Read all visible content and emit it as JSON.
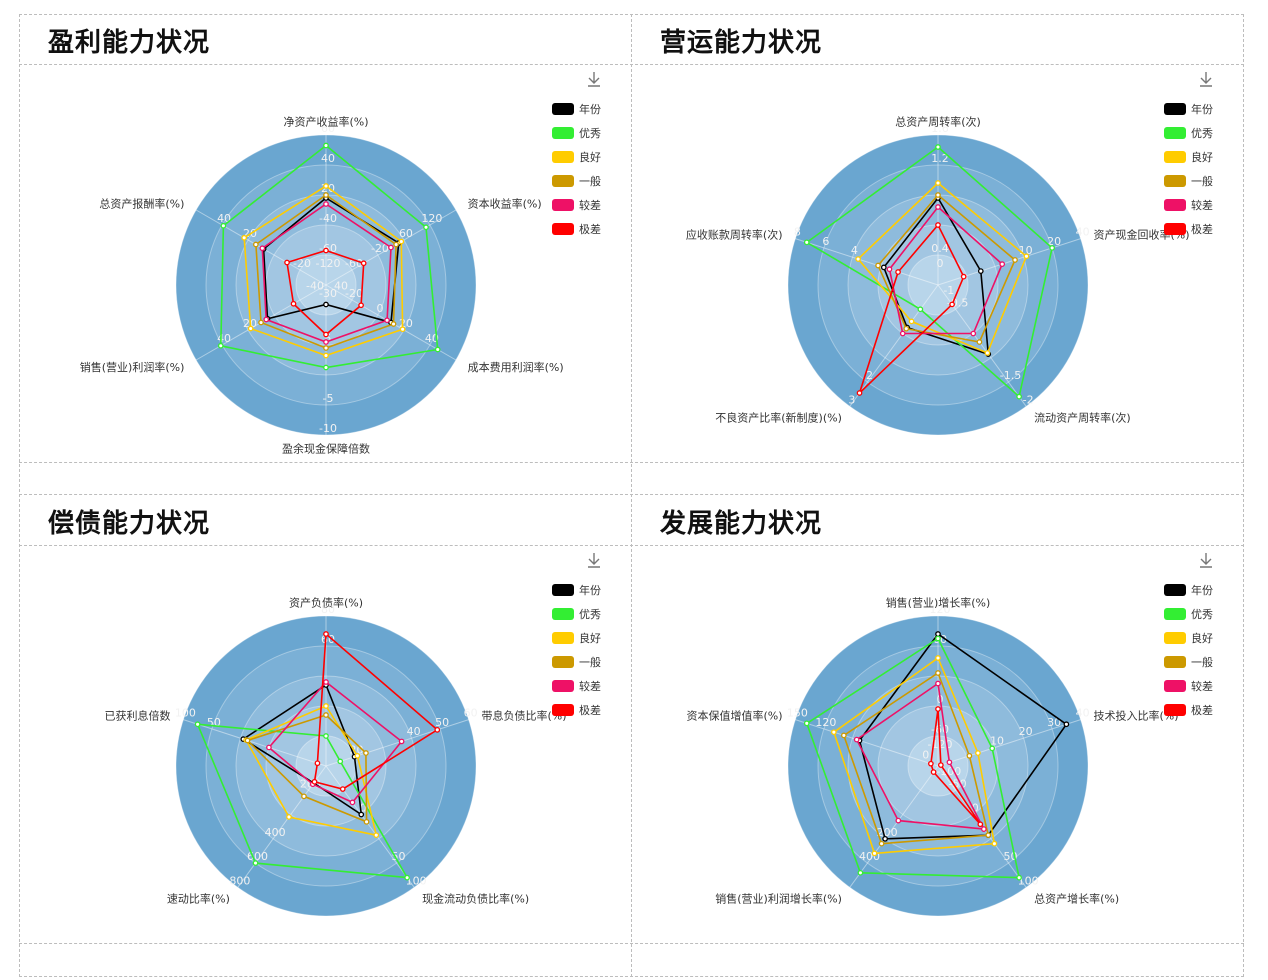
{
  "legend_colors": {
    "年份": "#000000",
    "优秀": "#33ee33",
    "良好": "#ffcc00",
    "一般": "#cc9900",
    "较差": "#ee1166",
    "极差": "#ff0000"
  },
  "panels": [
    {
      "title": "盈利能力状况",
      "chart_data": {
        "type": "radar",
        "indicators": [
          {
            "name": "净资产收益率(%)",
            "ticks": [
              "-120",
              "-60",
              "-40",
              "20",
              "40",
              "60"
            ]
          },
          {
            "name": "资本收益率(%)",
            "ticks": [
              "",
              "-60",
              "-20",
              "60",
              "120",
              ""
            ]
          },
          {
            "name": "成本费用利润率(%)",
            "ticks": [
              "40",
              "-20",
              "0",
              "20",
              "40",
              ""
            ]
          },
          {
            "name": "盈余现金保障倍数",
            "ticks": [
              "-30",
              "",
              "5",
              "",
              "-5",
              "-10"
            ]
          },
          {
            "name": "销售(营业)利润率(%)",
            "ticks": [
              "-40",
              "",
              "",
              "20",
              "40",
              ""
            ]
          },
          {
            "name": "总资产报酬率(%)",
            "ticks": [
              "",
              "-20",
              "",
              "20",
              "40",
              ""
            ]
          }
        ],
        "series": [
          {
            "name": "年份",
            "values": [
              0.58,
              0.56,
              0.5,
              0.13,
              0.45,
              0.48
            ]
          },
          {
            "name": "优秀",
            "values": [
              0.93,
              0.77,
              0.86,
              0.55,
              0.81,
              0.79
            ]
          },
          {
            "name": "良好",
            "values": [
              0.66,
              0.58,
              0.59,
              0.47,
              0.58,
              0.63
            ]
          },
          {
            "name": "一般",
            "values": [
              0.6,
              0.54,
              0.52,
              0.42,
              0.5,
              0.54
            ]
          },
          {
            "name": "较差",
            "values": [
              0.54,
              0.5,
              0.47,
              0.38,
              0.46,
              0.49
            ]
          },
          {
            "name": "极差",
            "values": [
              0.23,
              0.29,
              0.27,
              0.33,
              0.25,
              0.3
            ]
          }
        ]
      }
    },
    {
      "title": "营运能力状况",
      "chart_data": {
        "type": "radar",
        "indicators": [
          {
            "name": "总资产周转率(次)",
            "ticks": [
              "0",
              "0.4",
              "",
              "",
              "1.2",
              "1.6"
            ]
          },
          {
            "name": "资产现金回收率(%)",
            "ticks": [
              "",
              "",
              "",
              "10",
              "20",
              "40"
            ]
          },
          {
            "name": "流动资产周转率(次)",
            "ticks": [
              "-1",
              "-0.5",
              "",
              "",
              "-1.5",
              "-2"
            ]
          },
          {
            "name": "不良资产比率(新制度)(%)",
            "ticks": [
              "",
              "",
              "",
              "",
              "2",
              "3"
            ]
          },
          {
            "name": "应收账款周转率(次)",
            "ticks": [
              "",
              "",
              "",
              "4",
              "6",
              "8"
            ]
          }
        ],
        "series": [
          {
            "name": "年份",
            "values": [
              0.58,
              0.3,
              0.57,
              0.35,
              0.38
            ]
          },
          {
            "name": "优秀",
            "values": [
              0.92,
              0.8,
              0.92,
              0.2,
              0.92
            ]
          },
          {
            "name": "良好",
            "values": [
              0.68,
              0.62,
              0.56,
              0.3,
              0.56
            ]
          },
          {
            "name": "一般",
            "values": [
              0.6,
              0.54,
              0.47,
              0.36,
              0.42
            ]
          },
          {
            "name": "较差",
            "values": [
              0.52,
              0.45,
              0.4,
              0.4,
              0.34
            ]
          },
          {
            "name": "极差",
            "values": [
              0.4,
              0.18,
              0.16,
              0.89,
              0.28
            ]
          }
        ]
      }
    },
    {
      "title": "偿债能力状况",
      "chart_data": {
        "type": "radar",
        "indicators": [
          {
            "name": "资产负债率(%)",
            "ticks": [
              "",
              "",
              "",
              "",
              "60",
              "80"
            ]
          },
          {
            "name": "带息负债比率(%)",
            "ticks": [
              "",
              "20",
              "",
              "40",
              "50",
              "60"
            ]
          },
          {
            "name": "现金流动负债比率(%)",
            "ticks": [
              "",
              "",
              "0",
              "",
              "50",
              "100"
            ]
          },
          {
            "name": "速动比率(%)",
            "ticks": [
              "",
              "200",
              "",
              "400",
              "600",
              "800"
            ]
          },
          {
            "name": "已获利息倍数",
            "ticks": [
              "",
              "",
              "",
              "",
              "50",
              "100"
            ]
          }
        ],
        "series": [
          {
            "name": "年份",
            "values": [
              0.54,
              0.2,
              0.4,
              0.14,
              0.58
            ]
          },
          {
            "name": "优秀",
            "values": [
              0.2,
              0.1,
              0.92,
              0.8,
              0.9
            ]
          },
          {
            "name": "良好",
            "values": [
              0.4,
              0.22,
              0.57,
              0.42,
              0.56
            ]
          },
          {
            "name": "一般",
            "values": [
              0.34,
              0.28,
              0.46,
              0.25,
              0.55
            ]
          },
          {
            "name": "较差",
            "values": [
              0.56,
              0.53,
              0.3,
              0.15,
              0.4
            ]
          },
          {
            "name": "极差",
            "values": [
              0.88,
              0.78,
              0.19,
              0.13,
              0.06
            ]
          }
        ]
      }
    },
    {
      "title": "发展能力状况",
      "chart_data": {
        "type": "radar",
        "indicators": [
          {
            "name": "销售(营业)增长率(%)",
            "ticks": [
              "-120",
              "-60",
              "0",
              "",
              "60",
              "120"
            ]
          },
          {
            "name": "技术投入比率(%)",
            "ticks": [
              "",
              "",
              "10",
              "20",
              "30",
              "40"
            ]
          },
          {
            "name": "总资产增长率(%)",
            "ticks": [
              "-100",
              "-50",
              "0",
              "",
              "50",
              "100"
            ]
          },
          {
            "name": "销售(营业)利润增长率(%)",
            "ticks": [
              "",
              "",
              "",
              "200",
              "400",
              ""
            ]
          },
          {
            "name": "资本保值增值率(%)",
            "ticks": [
              "0",
              "",
              "",
              "",
              "120",
              "150"
            ]
          }
        ],
        "series": [
          {
            "name": "年份",
            "values": [
              0.88,
              0.9,
              0.57,
              0.6,
              0.55
            ]
          },
          {
            "name": "优秀",
            "values": [
              0.85,
              0.38,
              0.92,
              0.88,
              0.92
            ]
          },
          {
            "name": "良好",
            "values": [
              0.72,
              0.28,
              0.64,
              0.72,
              0.73
            ]
          },
          {
            "name": "一般",
            "values": [
              0.62,
              0.22,
              0.57,
              0.64,
              0.66
            ]
          },
          {
            "name": "较差",
            "values": [
              0.55,
              0.08,
              0.52,
              0.45,
              0.57
            ]
          },
          {
            "name": "极差",
            "values": [
              0.38,
              0.02,
              0.48,
              0.05,
              0.05
            ]
          }
        ]
      }
    }
  ]
}
